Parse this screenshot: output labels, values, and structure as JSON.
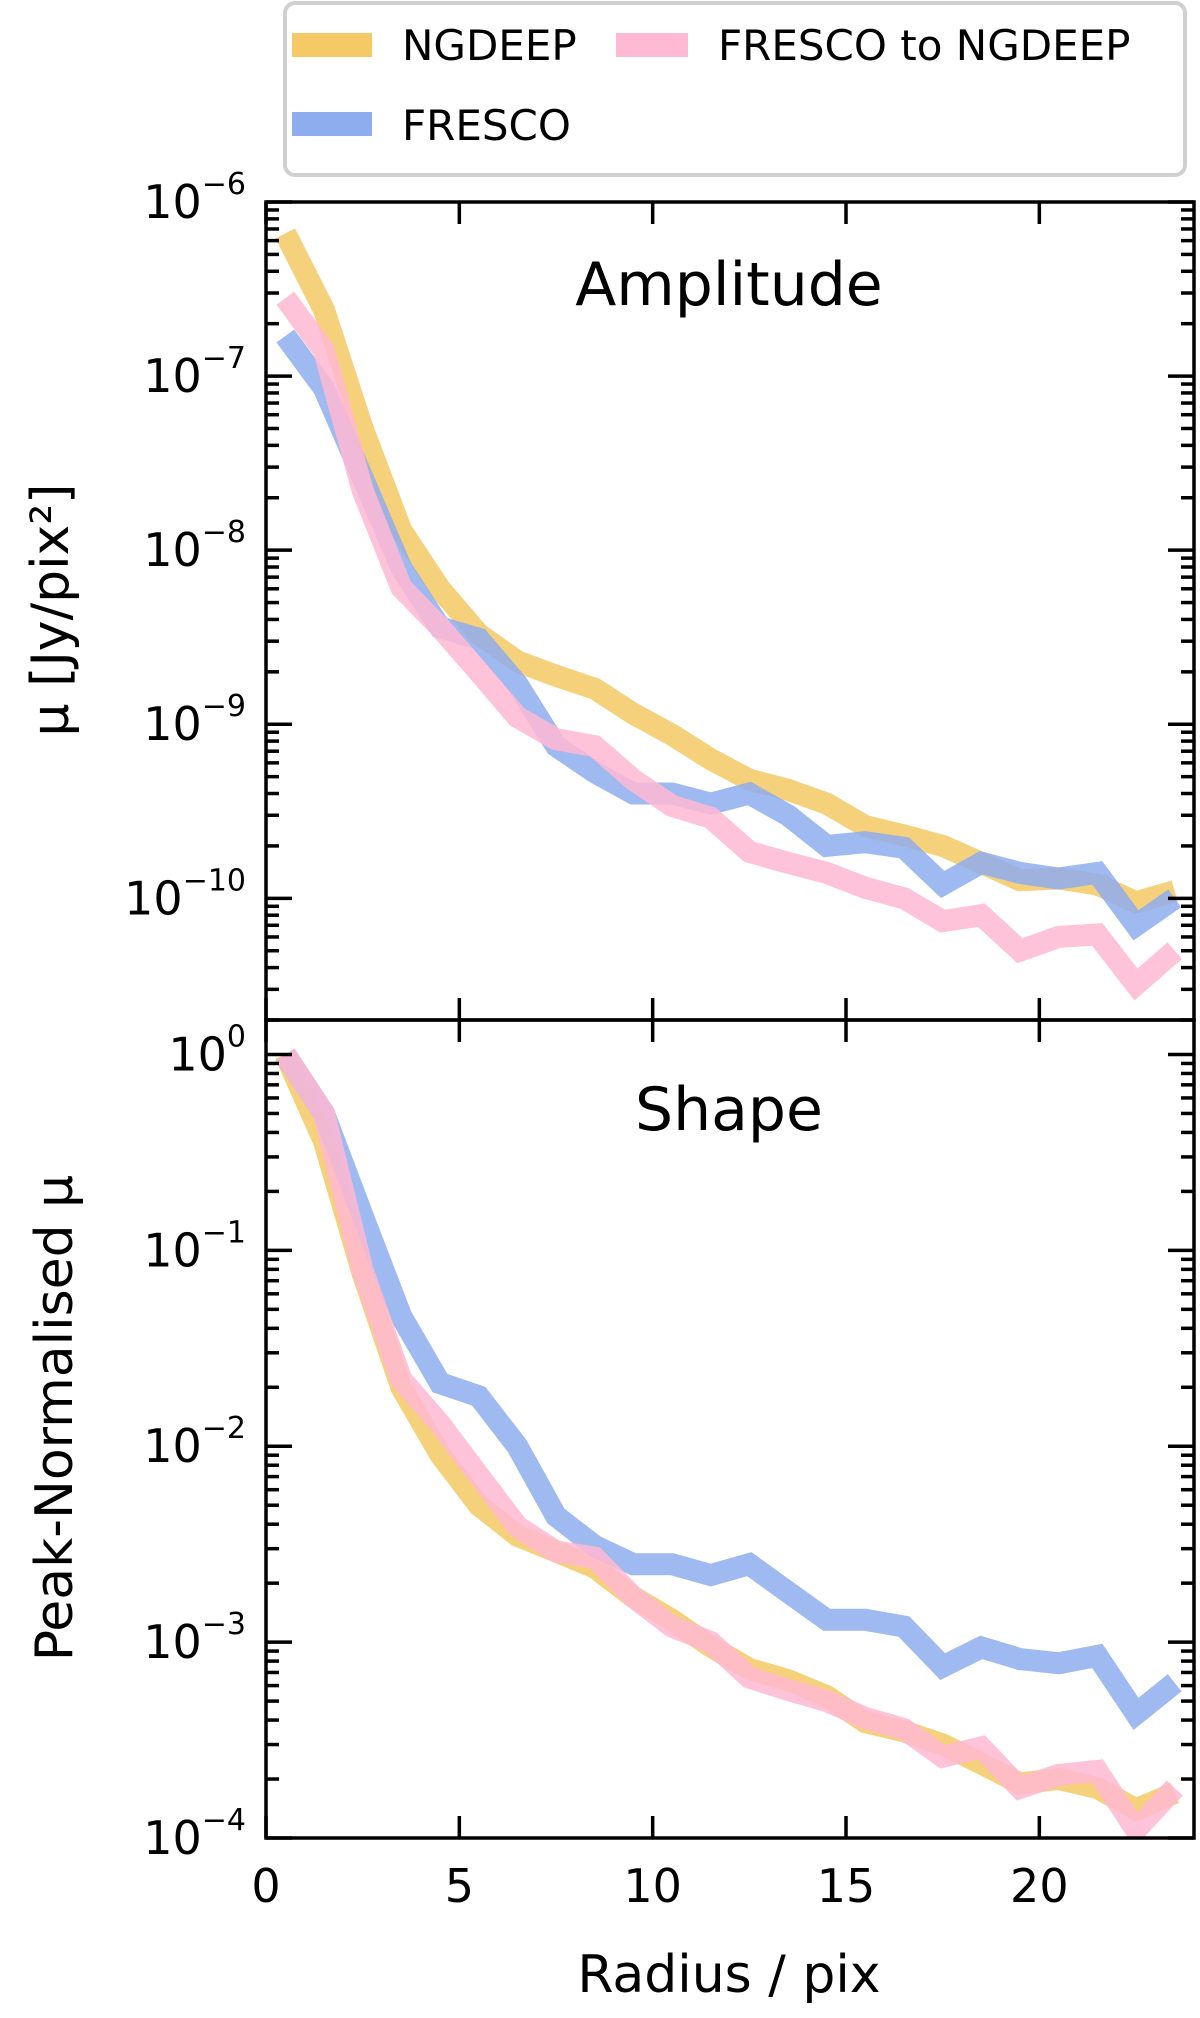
{
  "chart_data": [
    {
      "type": "line",
      "title": "Amplitude",
      "xlabel": "",
      "ylabel": "μ [Jy/pix²]",
      "yscale": "log",
      "xlim": [
        0,
        24
      ],
      "ylim": [
        2e-11,
        1e-06
      ],
      "yticks": [
        1e-06,
        1e-07,
        1e-08,
        1e-09,
        1e-10
      ],
      "ytick_exponents": [
        "−6",
        "−7",
        "−8",
        "−9",
        "−10"
      ],
      "x": [
        0.5,
        1.5,
        2.5,
        3.5,
        4.5,
        5.5,
        6.5,
        7.5,
        8.5,
        9.5,
        10.5,
        11.5,
        12.5,
        13.5,
        14.5,
        15.5,
        16.5,
        17.5,
        18.5,
        19.5,
        20.5,
        21.5,
        22.5,
        23.5
      ],
      "series": [
        {
          "name": "NGDEEP",
          "color": "#f5c965",
          "values": [
            6.6e-07,
            2.4e-07,
            5e-08,
            1.3e-08,
            6e-09,
            3.3e-09,
            2.3e-09,
            1.9e-09,
            1.6e-09,
            1.15e-09,
            8.7e-10,
            6.3e-10,
            4.8e-10,
            4.2e-10,
            3.5e-10,
            2.6e-10,
            2.3e-10,
            2e-10,
            1.6e-10,
            1.27e-10,
            1.3e-10,
            1.2e-10,
            9.5e-11,
            1.1e-10
          ]
        },
        {
          "name": "FRESCO",
          "color": "#8eadee",
          "values": [
            1.7e-07,
            8.5e-08,
            2.6e-08,
            7.9e-09,
            3.6e-09,
            3.1e-09,
            1.7e-09,
            7.5e-10,
            5.3e-10,
            4e-10,
            4e-10,
            3.5e-10,
            4e-10,
            3e-10,
            2e-10,
            2.1e-10,
            1.95e-10,
            1.2e-10,
            1.6e-10,
            1.4e-10,
            1.3e-10,
            1.4e-10,
            7e-11,
            1e-10
          ]
        },
        {
          "name": "FRESCO to NGDEEP",
          "color": "#ffb9d2",
          "values": [
            2.8e-07,
            1.4e-07,
            2.2e-08,
            6.1e-09,
            3.6e-09,
            2e-09,
            1.1e-09,
            8.2e-10,
            7.5e-10,
            4.8e-10,
            3.4e-10,
            2.9e-10,
            1.85e-10,
            1.6e-10,
            1.4e-10,
            1.15e-10,
            1e-10,
            7.4e-11,
            8e-11,
            5e-11,
            6e-11,
            6.2e-11,
            3.2e-11,
            5e-11
          ]
        }
      ]
    },
    {
      "type": "line",
      "title": "Shape",
      "xlabel": "Radius / pix",
      "ylabel": "Peak-Normalised μ",
      "yscale": "log",
      "xlim": [
        0,
        24
      ],
      "ylim": [
        0.0001,
        1.5
      ],
      "xticks": [
        0,
        5,
        10,
        15,
        20
      ],
      "xtick_labels": [
        "0",
        "5",
        "10",
        "15",
        "20"
      ],
      "yticks": [
        1,
        0.1,
        0.01,
        0.001,
        0.0001
      ],
      "ytick_exponents": [
        "0",
        "−1",
        "−2",
        "−3",
        "−4"
      ],
      "x": [
        0.5,
        1.5,
        2.5,
        3.5,
        4.5,
        5.5,
        6.5,
        7.5,
        8.5,
        9.5,
        10.5,
        11.5,
        12.5,
        13.5,
        14.5,
        15.5,
        16.5,
        17.5,
        18.5,
        19.5,
        20.5,
        21.5,
        22.5,
        23.5
      ],
      "series": [
        {
          "name": "NGDEEP",
          "color": "#f5c965",
          "values": [
            1,
            0.36,
            0.076,
            0.02,
            0.0091,
            0.005,
            0.0035,
            0.0029,
            0.0024,
            0.0017,
            0.0013,
            0.00095,
            0.00073,
            0.00064,
            0.00053,
            0.00039,
            0.00035,
            0.0003,
            0.00024,
            0.00019,
            0.0002,
            0.00018,
            0.00014,
            0.00017
          ]
        },
        {
          "name": "FRESCO",
          "color": "#8eadee",
          "values": [
            1,
            0.5,
            0.15,
            0.046,
            0.021,
            0.018,
            0.01,
            0.0044,
            0.0031,
            0.0025,
            0.0025,
            0.0022,
            0.0025,
            0.0018,
            0.0013,
            0.0013,
            0.0012,
            0.00075,
            0.00094,
            0.00082,
            0.00078,
            0.00085,
            0.00043,
            0.00062
          ]
        },
        {
          "name": "FRESCO to NGDEEP",
          "color": "#ffb9d2",
          "values": [
            1,
            0.5,
            0.079,
            0.022,
            0.013,
            0.0071,
            0.0039,
            0.0029,
            0.0027,
            0.0017,
            0.0012,
            0.001,
            0.00066,
            0.00057,
            0.0005,
            0.00041,
            0.00036,
            0.00026,
            0.00029,
            0.00018,
            0.00021,
            0.00022,
            0.00011,
            0.00018
          ]
        }
      ]
    }
  ],
  "legend": {
    "placement": "top",
    "entries": [
      {
        "label": "NGDEEP",
        "color": "#f5c965"
      },
      {
        "label": "FRESCO to NGDEEP",
        "color": "#ffb9d2"
      },
      {
        "label": "FRESCO",
        "color": "#8eadee"
      }
    ]
  }
}
